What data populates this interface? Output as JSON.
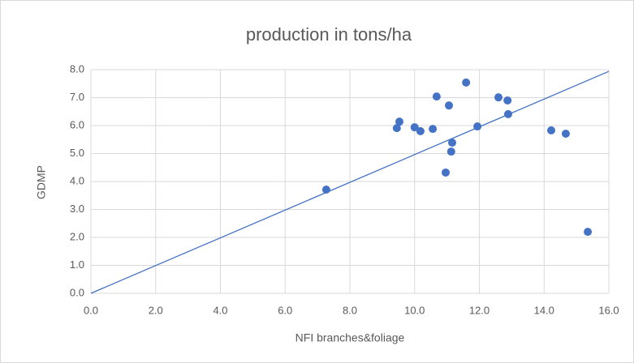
{
  "chart_data": {
    "type": "scatter",
    "title": "production in tons/ha",
    "x_label": "NFI branches&foliage",
    "y_label": "GDMP",
    "x": [
      7.27,
      9.45,
      9.53,
      10.0,
      10.18,
      10.56,
      10.68,
      10.96,
      11.06,
      11.13,
      11.16,
      11.59,
      11.94,
      12.59,
      12.87,
      12.89,
      14.22,
      14.67,
      15.35
    ],
    "y": [
      3.71,
      5.91,
      6.14,
      5.94,
      5.8,
      5.88,
      7.04,
      4.32,
      6.72,
      5.07,
      5.39,
      7.54,
      5.97,
      7.01,
      6.9,
      6.41,
      5.83,
      5.71,
      2.2
    ],
    "color": "#4472c4",
    "trendline": {
      "x": [
        0,
        16
      ],
      "y": [
        0,
        7.94
      ],
      "color": "#4472c4"
    },
    "xlim": [
      0,
      16
    ],
    "ylim": [
      0,
      8
    ],
    "xticks": [
      {
        "value": 0,
        "label": "0.0"
      },
      {
        "value": 2,
        "label": "2.0"
      },
      {
        "value": 4,
        "label": "4.0"
      },
      {
        "value": 6,
        "label": "6.0"
      },
      {
        "value": 8,
        "label": "8.0"
      },
      {
        "value": 10,
        "label": "10.0"
      },
      {
        "value": 12,
        "label": "12.0"
      },
      {
        "value": 14,
        "label": "14.0"
      },
      {
        "value": 16,
        "label": "16.0"
      }
    ],
    "yticks": [
      {
        "value": 0,
        "label": "0.0"
      },
      {
        "value": 1,
        "label": "1.0"
      },
      {
        "value": 2,
        "label": "2.0"
      },
      {
        "value": 3,
        "label": "3.0"
      },
      {
        "value": 4,
        "label": "4.0"
      },
      {
        "value": 5,
        "label": "5.0"
      },
      {
        "value": 6,
        "label": "6.0"
      },
      {
        "value": 7,
        "label": "7.0"
      },
      {
        "value": 8,
        "label": "8.0"
      }
    ],
    "grid": true
  }
}
